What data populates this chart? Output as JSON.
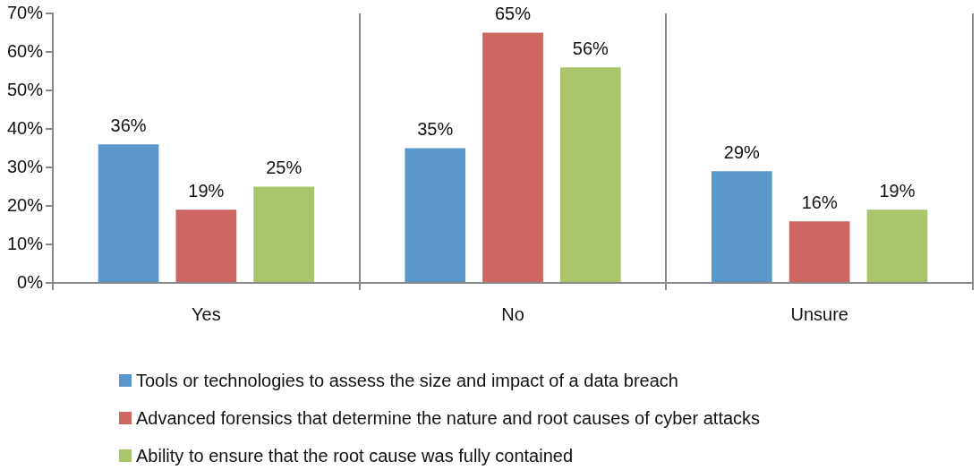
{
  "chart_data": {
    "type": "bar",
    "categories": [
      "Yes",
      "No",
      "Unsure"
    ],
    "series": [
      {
        "name": "Tools or technologies to assess the size and impact of a data breach",
        "color": "#5b97cb",
        "values": [
          36,
          35,
          29
        ],
        "value_labels": [
          "36%",
          "35%",
          "29%"
        ]
      },
      {
        "name": "Advanced forensics that determine the nature and root causes of cyber attacks",
        "color": "#cd6660",
        "values": [
          19,
          65,
          16
        ],
        "value_labels": [
          "19%",
          "65%",
          "16%"
        ]
      },
      {
        "name": "Ability to ensure that the root cause was fully contained",
        "color": "#a9c46b",
        "values": [
          25,
          56,
          19
        ],
        "value_labels": [
          "25%",
          "56%",
          "19%"
        ]
      }
    ],
    "ylim": [
      0,
      70
    ],
    "yticks": [
      {
        "value": 0,
        "label": "0%"
      },
      {
        "value": 10,
        "label": "10%"
      },
      {
        "value": 20,
        "label": "20%"
      },
      {
        "value": 30,
        "label": "30%"
      },
      {
        "value": 40,
        "label": "40%"
      },
      {
        "value": 50,
        "label": "50%"
      },
      {
        "value": 60,
        "label": "60%"
      },
      {
        "value": 70,
        "label": "70%"
      }
    ],
    "grid": "x",
    "legend": "bottom"
  }
}
